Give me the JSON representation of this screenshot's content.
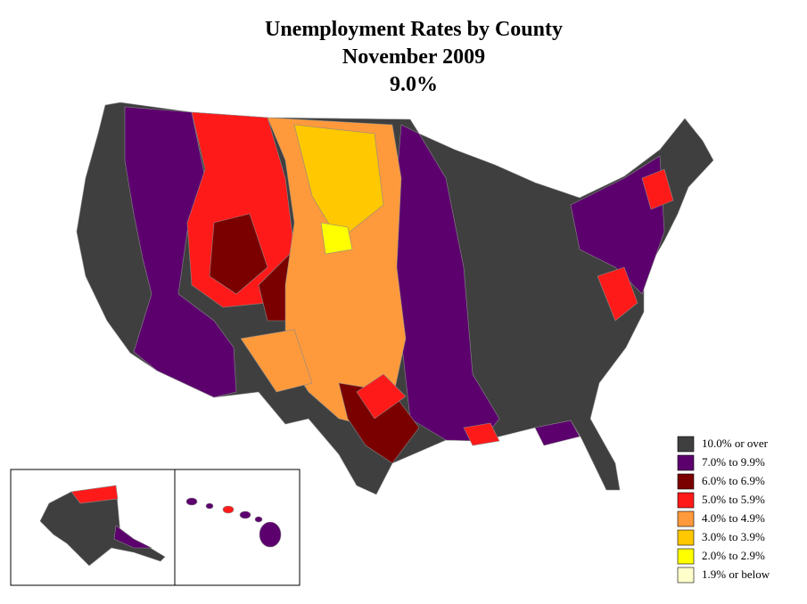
{
  "title": [
    "Unemployment Rates by County",
    "November 2009",
    "9.0%"
  ],
  "legend": {
    "items": [
      {
        "label": "10.0% or over",
        "color": "#3f3f3f"
      },
      {
        "label": "7.0% to 9.9%",
        "color": "#5c006e"
      },
      {
        "label": "6.0% to 6.9%",
        "color": "#7a0000"
      },
      {
        "label": "5.0% to 5.9%",
        "color": "#ff1a1a"
      },
      {
        "label": "4.0% to 4.9%",
        "color": "#ff9a3c"
      },
      {
        "label": "3.0% to 3.9%",
        "color": "#ffc800"
      },
      {
        "label": "2.0% to 2.9%",
        "color": "#ffff00"
      },
      {
        "label": "1.9% or below",
        "color": "#ffffcc"
      }
    ]
  }
}
